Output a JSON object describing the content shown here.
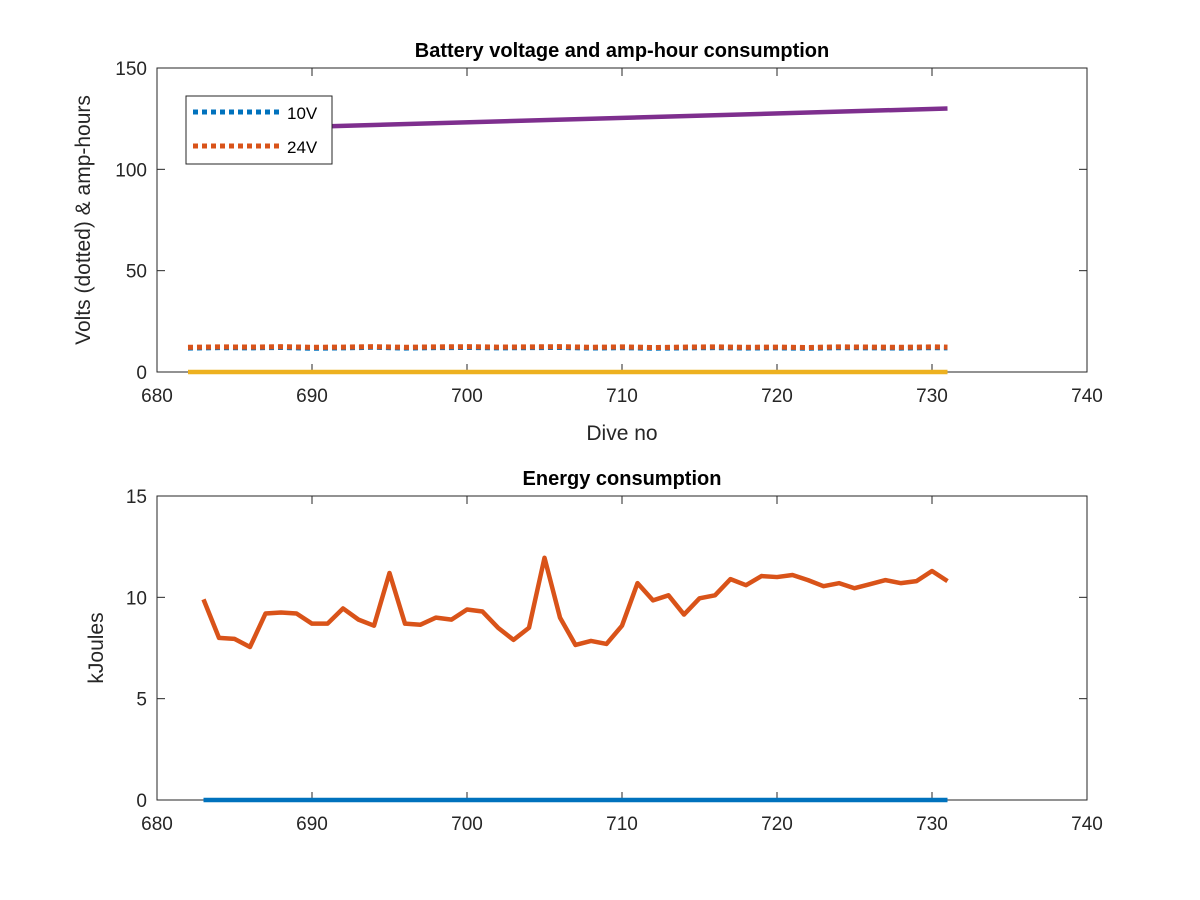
{
  "chart_data": [
    {
      "type": "line",
      "title": "Battery voltage and amp-hour consumption",
      "xlabel": "Dive no",
      "ylabel": "Volts (dotted) & amp-hours",
      "xlim": [
        680,
        740
      ],
      "ylim": [
        0,
        150
      ],
      "xticks": [
        680,
        690,
        700,
        710,
        720,
        730,
        740
      ],
      "yticks": [
        0,
        50,
        100,
        150
      ],
      "legend_position": "top-left",
      "series": [
        {
          "name": "10V",
          "style": "dotted",
          "color": "#0072BD",
          "x": [
            682,
            684,
            686,
            688,
            690,
            692,
            694,
            696,
            698,
            700,
            702,
            704,
            706,
            708,
            710,
            712,
            714,
            716,
            718,
            720,
            722,
            724,
            726,
            728,
            730,
            731
          ],
          "y": [
            11.8,
            12.0,
            11.9,
            12.1,
            11.7,
            11.9,
            12.2,
            11.8,
            12.0,
            12.1,
            11.9,
            12.0,
            12.1,
            11.8,
            12.0,
            11.7,
            11.9,
            12.0,
            11.8,
            11.9,
            11.7,
            12.0,
            11.9,
            11.8,
            12.0,
            11.9
          ]
        },
        {
          "name": "24V",
          "style": "dotted",
          "color": "#D95319",
          "x": [
            682,
            684,
            686,
            688,
            690,
            692,
            694,
            696,
            698,
            700,
            702,
            704,
            706,
            708,
            710,
            712,
            714,
            716,
            718,
            720,
            722,
            724,
            726,
            728,
            730,
            731
          ],
          "y": [
            12.2,
            12.4,
            12.3,
            12.5,
            12.2,
            12.3,
            12.5,
            12.2,
            12.4,
            12.5,
            12.3,
            12.4,
            12.5,
            12.2,
            12.4,
            12.1,
            12.3,
            12.4,
            12.2,
            12.3,
            12.1,
            12.4,
            12.3,
            12.2,
            12.4,
            12.3
          ]
        },
        {
          "style": "solid",
          "color": "#7E2F8E",
          "x": [
            690,
            731
          ],
          "y": [
            121,
            130
          ]
        },
        {
          "style": "solid",
          "color": "#EDB120",
          "x": [
            682,
            731
          ],
          "y": [
            0,
            0
          ]
        }
      ]
    },
    {
      "type": "line",
      "title": "Energy consumption",
      "xlabel": "",
      "ylabel": "kJoules",
      "xlim": [
        680,
        740
      ],
      "ylim": [
        0,
        15
      ],
      "xticks": [
        680,
        690,
        700,
        710,
        720,
        730,
        740
      ],
      "yticks": [
        0,
        5,
        10,
        15
      ],
      "series": [
        {
          "style": "solid",
          "color": "#D95319",
          "x": [
            683,
            684,
            685,
            686,
            687,
            688,
            689,
            690,
            691,
            692,
            693,
            694,
            695,
            696,
            697,
            698,
            699,
            700,
            701,
            702,
            703,
            704,
            705,
            706,
            707,
            708,
            709,
            710,
            711,
            712,
            713,
            714,
            715,
            716,
            717,
            718,
            719,
            720,
            721,
            722,
            723,
            724,
            725,
            726,
            727,
            728,
            729,
            730,
            731
          ],
          "y": [
            9.9,
            8.0,
            7.95,
            7.55,
            9.2,
            9.25,
            9.2,
            8.7,
            8.7,
            9.45,
            8.9,
            8.6,
            11.2,
            8.7,
            8.65,
            9.0,
            8.9,
            9.4,
            9.3,
            8.5,
            7.9,
            8.5,
            11.95,
            9.0,
            7.65,
            7.85,
            7.7,
            8.6,
            10.7,
            9.85,
            10.1,
            9.15,
            9.95,
            10.1,
            10.9,
            10.6,
            11.05,
            11.0,
            11.1,
            10.85,
            10.55,
            10.7,
            10.45,
            10.65,
            10.85,
            10.7,
            10.8,
            11.3,
            10.8
          ]
        },
        {
          "style": "solid",
          "color": "#0072BD",
          "x": [
            683,
            731
          ],
          "y": [
            0,
            0
          ]
        }
      ]
    }
  ]
}
